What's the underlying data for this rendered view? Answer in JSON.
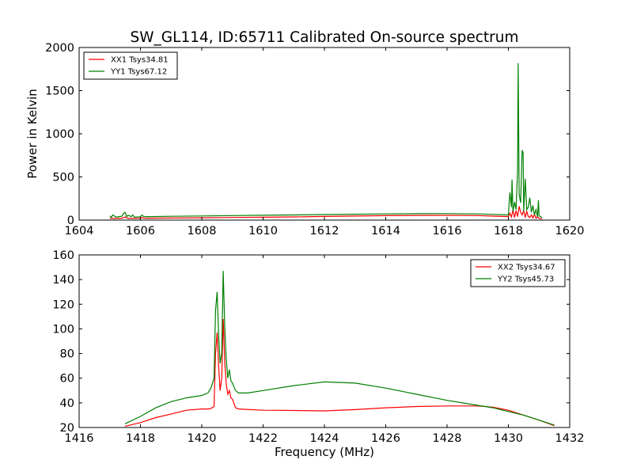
{
  "title": "SW_GL114, ID:65711 Calibrated On-source spectrum",
  "chart_data": [
    {
      "type": "line",
      "title": "SW_GL114, ID:65711 Calibrated On-source spectrum",
      "xlabel": "",
      "ylabel": "Power in Kelvin",
      "xlim": [
        1604,
        1620
      ],
      "ylim": [
        0,
        2000
      ],
      "xticks": [
        1604,
        1606,
        1608,
        1610,
        1612,
        1614,
        1616,
        1618,
        1620
      ],
      "yticks": [
        0,
        500,
        1000,
        1500,
        2000
      ],
      "legend_position": "top-left",
      "grid": false,
      "series": [
        {
          "name": "XX1 Tsys34.81",
          "color": "#ff0000",
          "x": [
            1605.0,
            1605.2,
            1605.4,
            1605.5,
            1605.6,
            1605.8,
            1606.0,
            1606.05,
            1606.1,
            1606.3,
            1607,
            1608,
            1609,
            1610,
            1611,
            1612,
            1613,
            1614,
            1615,
            1616,
            1617,
            1617.5,
            1618.0,
            1618.05,
            1618.1,
            1618.15,
            1618.2,
            1618.25,
            1618.3,
            1618.35,
            1618.4,
            1618.45,
            1618.5,
            1618.55,
            1618.6,
            1618.65,
            1618.7,
            1618.75,
            1618.8,
            1618.85,
            1618.9,
            1618.95,
            1619.0,
            1619.1
          ],
          "y": [
            20,
            18,
            22,
            35,
            19,
            21,
            20,
            30,
            22,
            22,
            24,
            27,
            30,
            33,
            37,
            42,
            47,
            51,
            54,
            55,
            52,
            46,
            40,
            80,
            35,
            120,
            30,
            110,
            40,
            160,
            90,
            60,
            110,
            30,
            100,
            40,
            30,
            60,
            25,
            70,
            20,
            40,
            20,
            15
          ]
        },
        {
          "name": "YY1 Tsys67.12",
          "color": "#008000",
          "x": [
            1605.0,
            1605.05,
            1605.1,
            1605.2,
            1605.3,
            1605.4,
            1605.45,
            1605.5,
            1605.55,
            1605.6,
            1605.7,
            1605.75,
            1605.8,
            1606.0,
            1606.05,
            1606.1,
            1606.2,
            1606.3,
            1607,
            1608,
            1609,
            1610,
            1611,
            1612,
            1613,
            1614,
            1615,
            1616,
            1617,
            1617.5,
            1618.0,
            1618.05,
            1618.1,
            1618.12,
            1618.15,
            1618.2,
            1618.25,
            1618.3,
            1618.32,
            1618.35,
            1618.4,
            1618.45,
            1618.48,
            1618.5,
            1618.55,
            1618.6,
            1618.65,
            1618.7,
            1618.75,
            1618.8,
            1618.85,
            1618.9,
            1618.95,
            1618.98,
            1619.0,
            1619.1
          ],
          "y": [
            50,
            30,
            60,
            35,
            40,
            45,
            80,
            90,
            40,
            55,
            40,
            60,
            35,
            38,
            60,
            42,
            40,
            40,
            44,
            48,
            52,
            56,
            60,
            64,
            68,
            72,
            74,
            75,
            72,
            66,
            60,
            320,
            150,
            470,
            100,
            210,
            120,
            570,
            1820,
            300,
            200,
            810,
            780,
            100,
            480,
            120,
            150,
            260,
            90,
            170,
            60,
            120,
            40,
            230,
            50,
            30
          ]
        }
      ]
    },
    {
      "type": "line",
      "title": "",
      "xlabel": "Frequency (MHz)",
      "ylabel": "",
      "xlim": [
        1416,
        1432
      ],
      "ylim": [
        20,
        160
      ],
      "xticks": [
        1416,
        1418,
        1420,
        1422,
        1424,
        1426,
        1428,
        1430,
        1432
      ],
      "yticks": [
        20,
        40,
        60,
        80,
        100,
        120,
        140,
        160
      ],
      "legend_position": "top-right",
      "grid": false,
      "series": [
        {
          "name": "XX2 Tsys34.67",
          "color": "#ff0000",
          "x": [
            1417.5,
            1418,
            1418.5,
            1419,
            1419.5,
            1420,
            1420.2,
            1420.3,
            1420.4,
            1420.45,
            1420.5,
            1420.55,
            1420.6,
            1420.65,
            1420.7,
            1420.75,
            1420.8,
            1420.85,
            1420.9,
            1420.95,
            1421.0,
            1421.1,
            1421.2,
            1422,
            1423,
            1424,
            1425,
            1426,
            1427,
            1428,
            1429,
            1429.5,
            1430,
            1430.5,
            1431,
            1431.5
          ],
          "y": [
            21,
            24,
            28,
            31,
            34,
            35,
            35,
            35.5,
            37,
            80,
            97,
            70,
            50,
            60,
            108,
            72,
            55,
            47,
            50,
            44,
            43,
            36,
            35,
            34,
            33.8,
            33.5,
            34.5,
            36,
            37,
            37.5,
            37.5,
            36.5,
            34,
            30,
            26,
            21.5
          ]
        },
        {
          "name": "YY2 Tsys45.73",
          "color": "#008000",
          "x": [
            1417.5,
            1418,
            1418.5,
            1419,
            1419.5,
            1420,
            1420.2,
            1420.3,
            1420.4,
            1420.45,
            1420.5,
            1420.55,
            1420.6,
            1420.65,
            1420.7,
            1420.75,
            1420.8,
            1420.85,
            1420.9,
            1420.95,
            1421.0,
            1421.1,
            1421.2,
            1421.5,
            1422,
            1423,
            1424,
            1425,
            1426,
            1427,
            1428,
            1429,
            1429.5,
            1430,
            1430.5,
            1431,
            1431.5
          ],
          "y": [
            23,
            29,
            36,
            41,
            44,
            46,
            48,
            52,
            60,
            115,
            130,
            95,
            72,
            80,
            147,
            100,
            75,
            60,
            67,
            58,
            56,
            50,
            48,
            48,
            50,
            54,
            57,
            56,
            52,
            47,
            42,
            38,
            36,
            33,
            30,
            26,
            22
          ]
        }
      ]
    }
  ]
}
